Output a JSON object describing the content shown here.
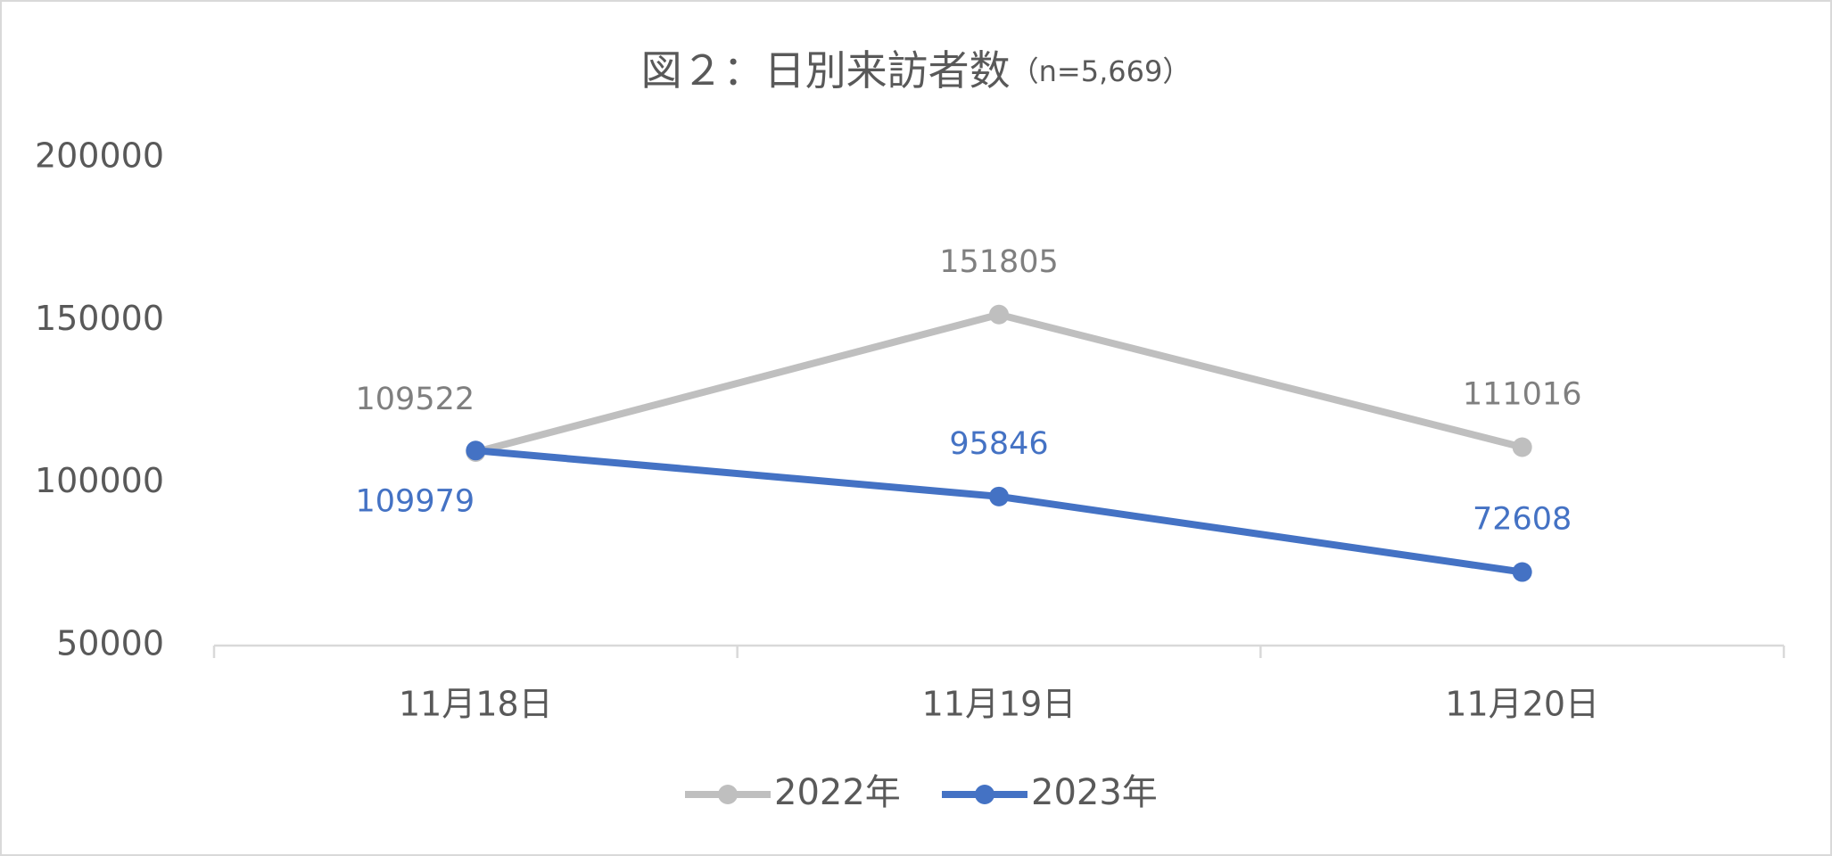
{
  "chart_data": {
    "type": "line",
    "title": "図２：日別来訪者数",
    "subtitle": "（n=5,669）",
    "categories": [
      "11月18日",
      "11月19日",
      "11月20日"
    ],
    "series": [
      {
        "name": "2022年",
        "color": "#bfbfbf",
        "label_color": "#7f7f7f",
        "values": [
          109522,
          151805,
          111016
        ]
      },
      {
        "name": "2023年",
        "color": "#4472c4",
        "label_color": "#4472c4",
        "values": [
          109979,
          95846,
          72608
        ]
      }
    ],
    "ylim": [
      50000,
      200000
    ],
    "yticks": [
      50000,
      100000,
      150000,
      200000
    ],
    "grid": false,
    "legend": "bottom"
  }
}
